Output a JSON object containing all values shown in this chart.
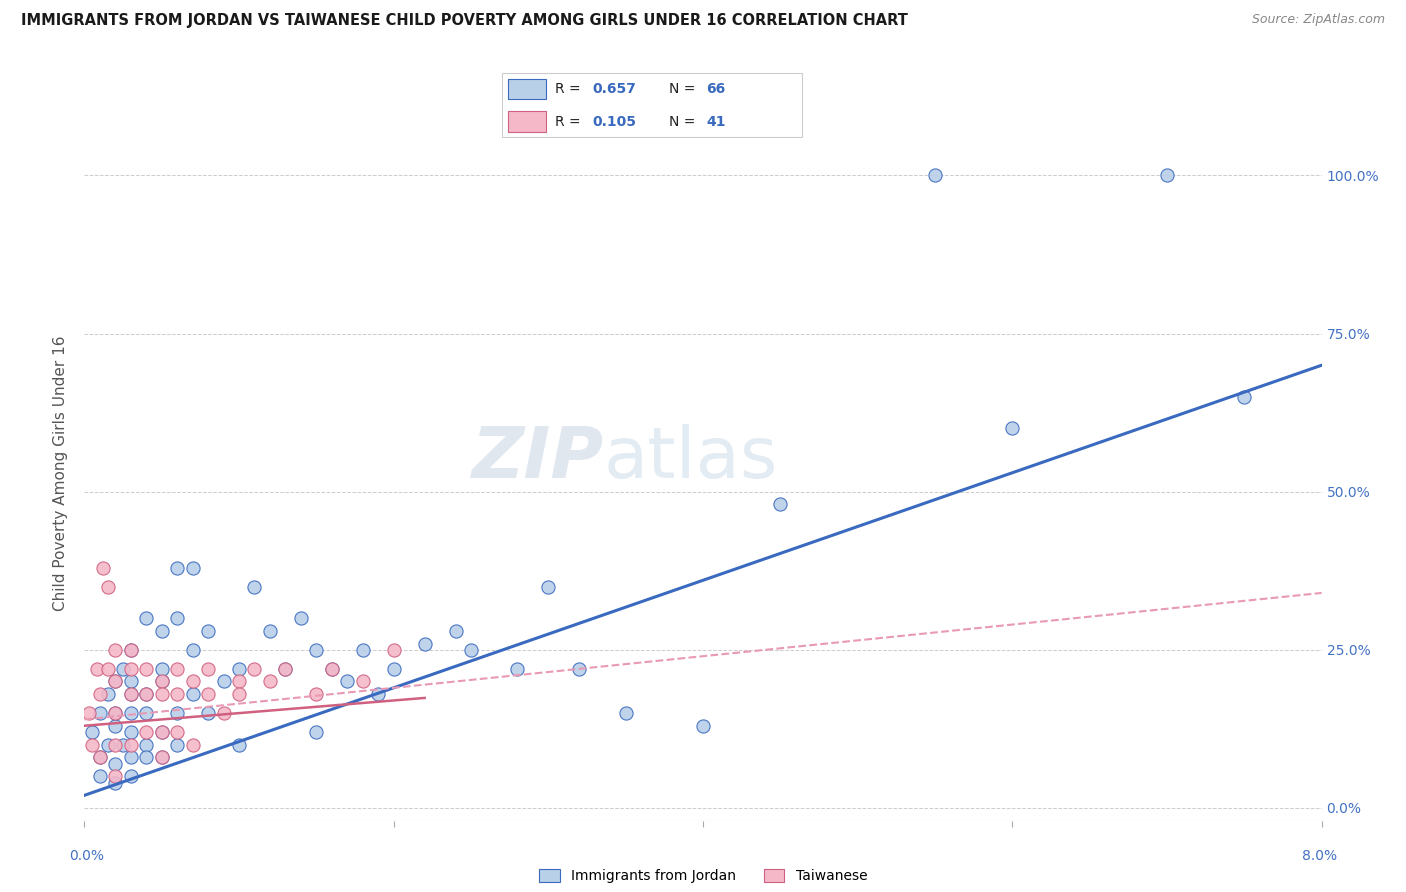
{
  "title": "IMMIGRANTS FROM JORDAN VS TAIWANESE CHILD POVERTY AMONG GIRLS UNDER 16 CORRELATION CHART",
  "source": "Source: ZipAtlas.com",
  "ylabel": "Child Poverty Among Girls Under 16",
  "yticks": [
    "0.0%",
    "25.0%",
    "50.0%",
    "75.0%",
    "100.0%"
  ],
  "ytick_vals": [
    0.0,
    0.25,
    0.5,
    0.75,
    1.0
  ],
  "xlim": [
    0.0,
    0.08
  ],
  "ylim": [
    -0.02,
    1.08
  ],
  "legend_label1": "Immigrants from Jordan",
  "legend_label2": "Taiwanese",
  "r1": "0.657",
  "n1": "66",
  "r2": "0.105",
  "n2": "41",
  "color_jordan": "#b8d0e8",
  "color_taiwanese": "#f4b8c8",
  "line_color_jordan": "#3a6abf",
  "line_color_taiwanese_dash": "#e899b4",
  "line_color_taiwanese_solid": "#d06080",
  "watermark_zip": "ZIP",
  "watermark_atlas": "atlas",
  "jordan_x": [
    0.0005,
    0.001,
    0.001,
    0.001,
    0.0015,
    0.0015,
    0.002,
    0.002,
    0.002,
    0.002,
    0.002,
    0.0025,
    0.0025,
    0.003,
    0.003,
    0.003,
    0.003,
    0.003,
    0.003,
    0.003,
    0.004,
    0.004,
    0.004,
    0.004,
    0.004,
    0.005,
    0.005,
    0.005,
    0.005,
    0.005,
    0.006,
    0.006,
    0.006,
    0.006,
    0.007,
    0.007,
    0.007,
    0.008,
    0.008,
    0.009,
    0.01,
    0.01,
    0.011,
    0.012,
    0.013,
    0.014,
    0.015,
    0.015,
    0.016,
    0.017,
    0.018,
    0.019,
    0.02,
    0.022,
    0.024,
    0.025,
    0.028,
    0.03,
    0.032,
    0.035,
    0.04,
    0.045,
    0.055,
    0.06,
    0.07,
    0.075
  ],
  "jordan_y": [
    0.12,
    0.08,
    0.15,
    0.05,
    0.1,
    0.18,
    0.13,
    0.2,
    0.07,
    0.15,
    0.04,
    0.22,
    0.1,
    0.18,
    0.25,
    0.15,
    0.08,
    0.12,
    0.05,
    0.2,
    0.3,
    0.18,
    0.1,
    0.15,
    0.08,
    0.28,
    0.2,
    0.12,
    0.08,
    0.22,
    0.38,
    0.3,
    0.15,
    0.1,
    0.38,
    0.25,
    0.18,
    0.28,
    0.15,
    0.2,
    0.22,
    0.1,
    0.35,
    0.28,
    0.22,
    0.3,
    0.25,
    0.12,
    0.22,
    0.2,
    0.25,
    0.18,
    0.22,
    0.26,
    0.28,
    0.25,
    0.22,
    0.35,
    0.22,
    0.15,
    0.13,
    0.48,
    1.0,
    0.6,
    1.0,
    0.65
  ],
  "taiwanese_x": [
    0.0003,
    0.0005,
    0.0008,
    0.001,
    0.001,
    0.0012,
    0.0015,
    0.0015,
    0.002,
    0.002,
    0.002,
    0.002,
    0.002,
    0.003,
    0.003,
    0.003,
    0.003,
    0.004,
    0.004,
    0.004,
    0.005,
    0.005,
    0.005,
    0.005,
    0.006,
    0.006,
    0.006,
    0.007,
    0.007,
    0.008,
    0.008,
    0.009,
    0.01,
    0.01,
    0.011,
    0.012,
    0.013,
    0.015,
    0.016,
    0.018,
    0.02
  ],
  "taiwanese_y": [
    0.15,
    0.1,
    0.22,
    0.18,
    0.08,
    0.38,
    0.35,
    0.22,
    0.25,
    0.2,
    0.15,
    0.1,
    0.05,
    0.25,
    0.22,
    0.18,
    0.1,
    0.22,
    0.18,
    0.12,
    0.2,
    0.18,
    0.12,
    0.08,
    0.22,
    0.18,
    0.12,
    0.2,
    0.1,
    0.22,
    0.18,
    0.15,
    0.2,
    0.18,
    0.22,
    0.2,
    0.22,
    0.18,
    0.22,
    0.2,
    0.25
  ]
}
